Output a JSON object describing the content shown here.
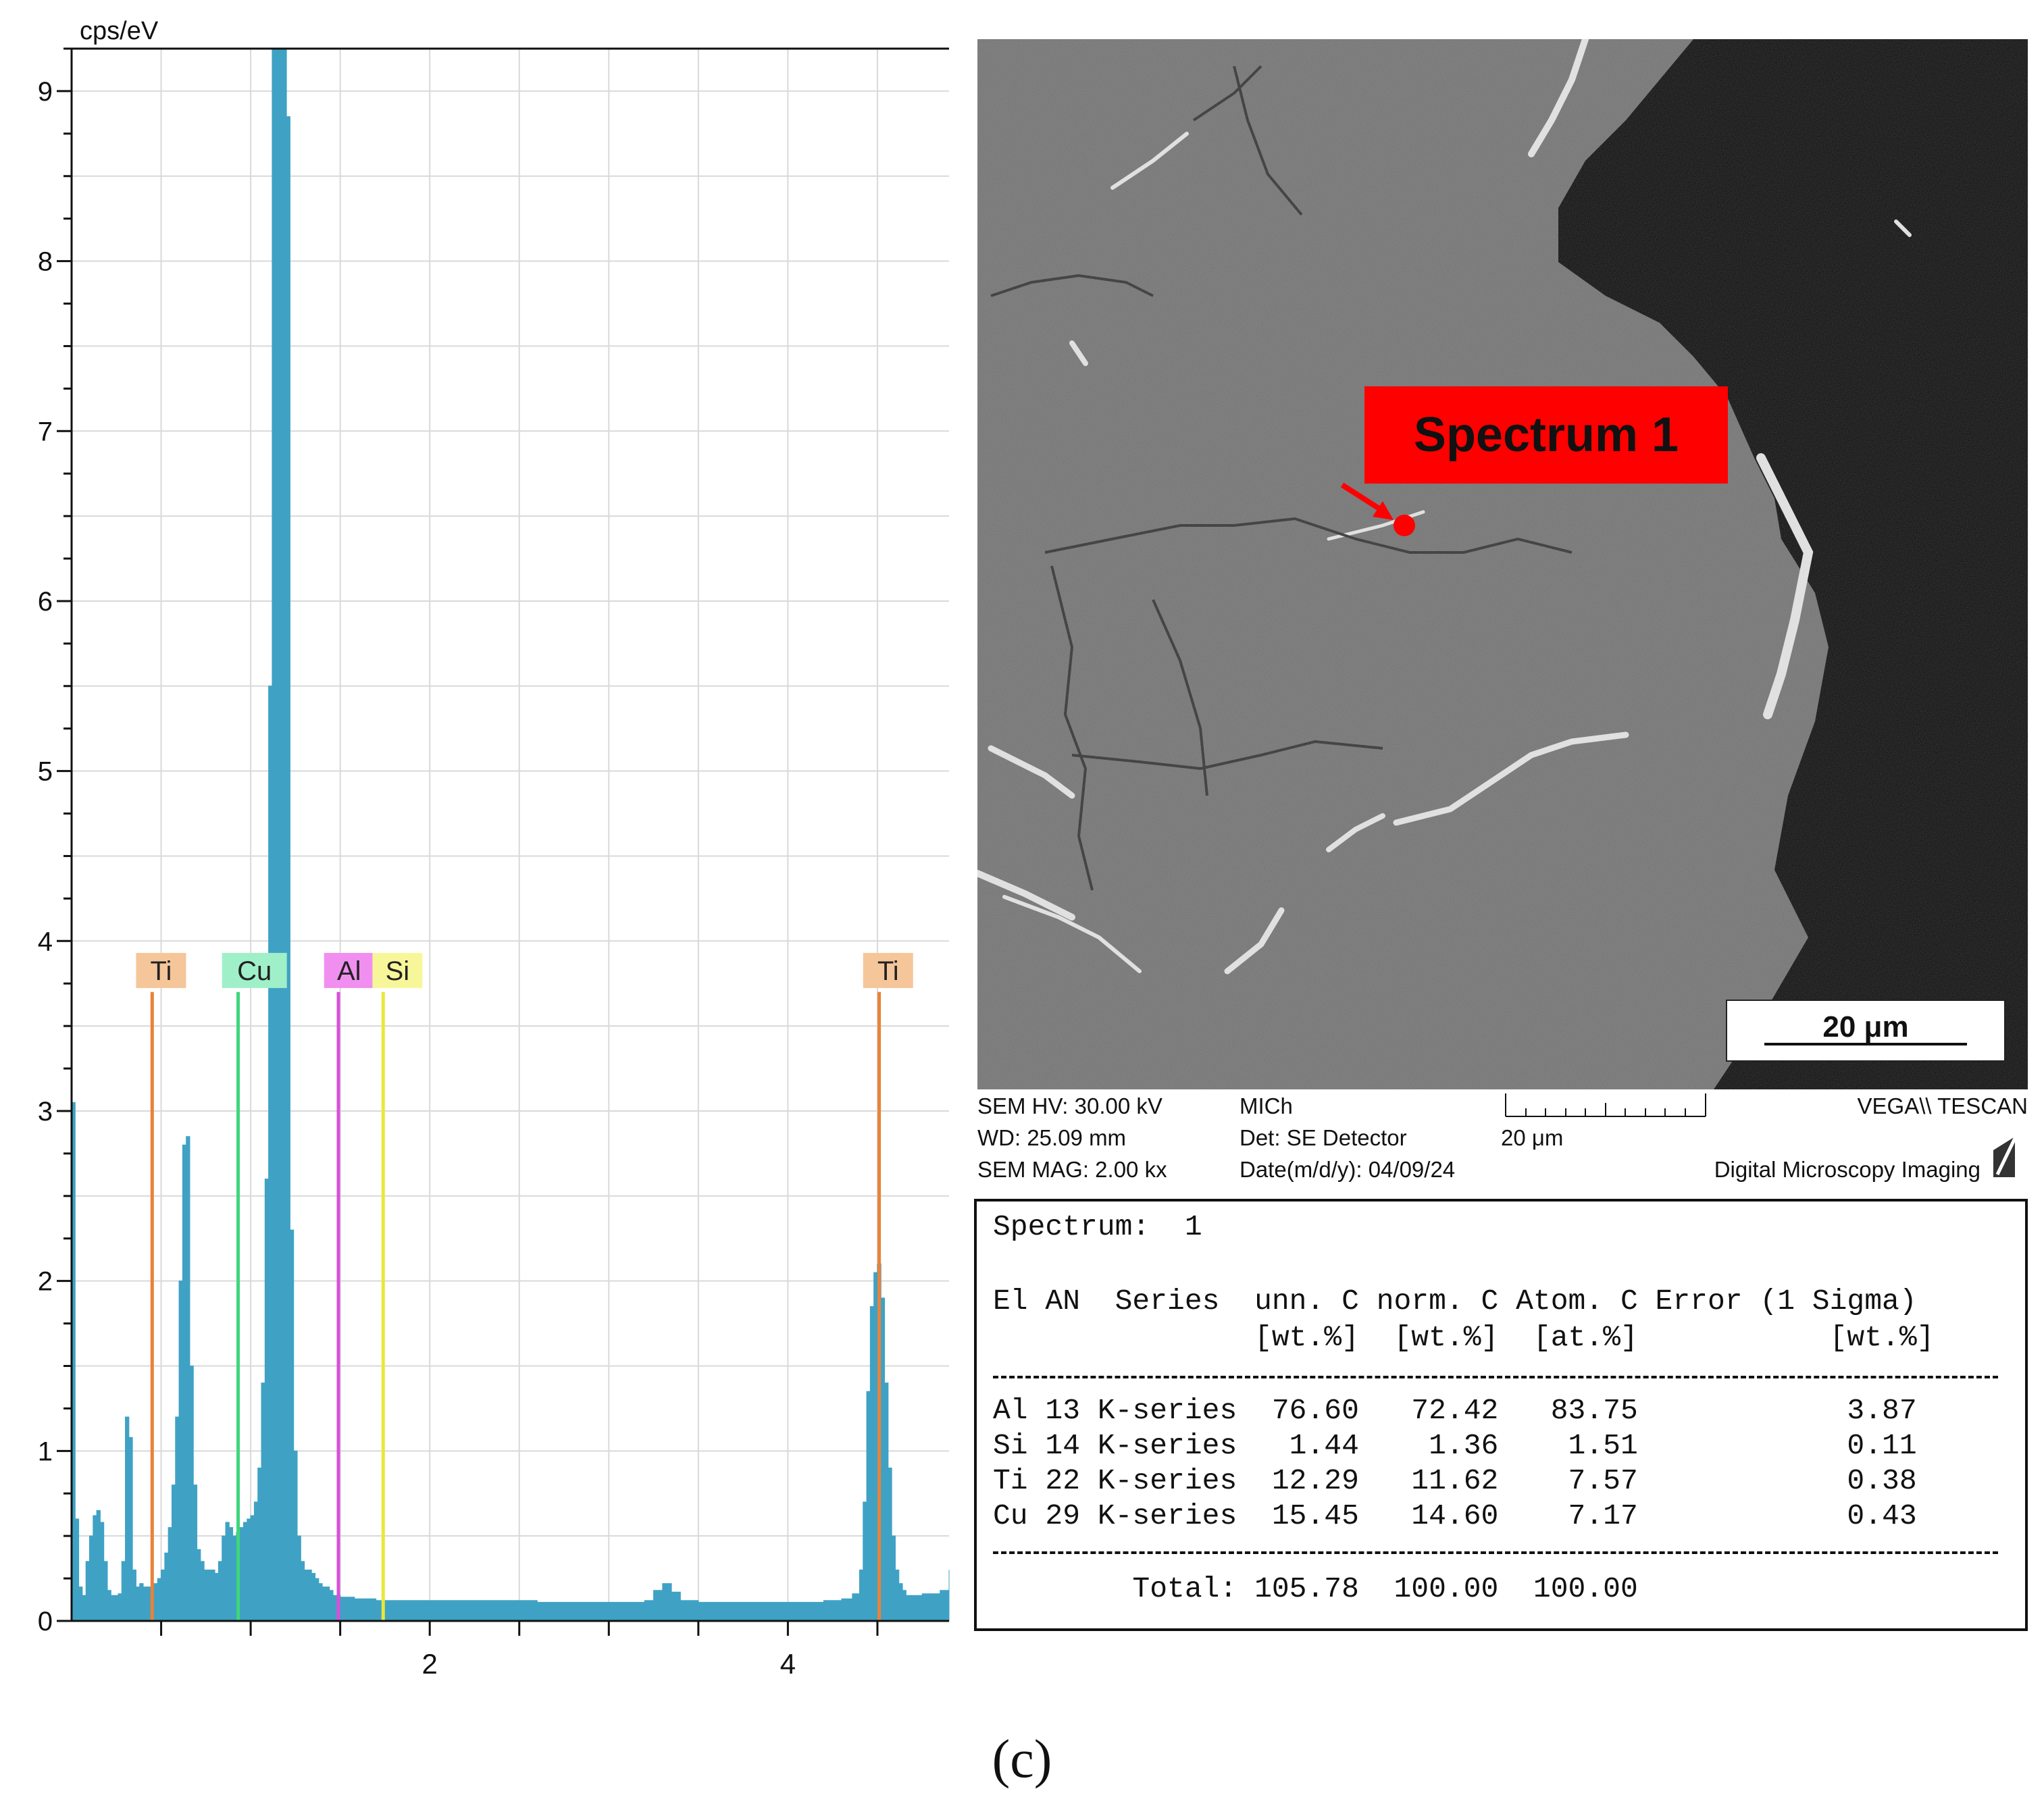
{
  "chart_data": {
    "type": "bar",
    "title": "",
    "xlabel": "",
    "ylabel": "cps/eV",
    "xlim": [
      0.0,
      4.9
    ],
    "ylim": [
      0,
      9.25
    ],
    "xticks": [
      2,
      4
    ],
    "xtick_labels": [
      "2",
      "4"
    ],
    "yticks": [
      0,
      1,
      2,
      3,
      4,
      5,
      6,
      7,
      8,
      9
    ],
    "ytick_labels": [
      "0",
      "1",
      "2",
      "3",
      "4",
      "5",
      "6",
      "7",
      "8",
      "9"
    ],
    "grid": true,
    "spectrum_color": "#3fa2c4",
    "spectrum": {
      "x": [
        0.0,
        0.02,
        0.04,
        0.06,
        0.08,
        0.1,
        0.12,
        0.14,
        0.16,
        0.18,
        0.2,
        0.22,
        0.24,
        0.26,
        0.28,
        0.3,
        0.32,
        0.34,
        0.36,
        0.38,
        0.4,
        0.42,
        0.44,
        0.46,
        0.48,
        0.5,
        0.52,
        0.54,
        0.56,
        0.58,
        0.6,
        0.62,
        0.64,
        0.66,
        0.68,
        0.7,
        0.72,
        0.74,
        0.76,
        0.78,
        0.8,
        0.82,
        0.84,
        0.86,
        0.88,
        0.9,
        0.92,
        0.94,
        0.96,
        0.98,
        1.0,
        1.02,
        1.04,
        1.06,
        1.08,
        1.1,
        1.12,
        1.14,
        1.16,
        1.18,
        1.2,
        1.22,
        1.24,
        1.26,
        1.28,
        1.3,
        1.32,
        1.34,
        1.36,
        1.38,
        1.4,
        1.42,
        1.44,
        1.46,
        1.48,
        1.5,
        1.52,
        1.54,
        1.56,
        1.58,
        1.6,
        1.62,
        1.64,
        1.66,
        1.68,
        1.7,
        1.72,
        1.74,
        1.76,
        1.78,
        1.8,
        1.85,
        1.9,
        2.0,
        2.2,
        2.4,
        2.6,
        2.8,
        3.0,
        3.1,
        3.2,
        3.25,
        3.3,
        3.35,
        3.4,
        3.5,
        3.7,
        3.9,
        4.0,
        4.1,
        4.2,
        4.3,
        4.36,
        4.4,
        4.42,
        4.44,
        4.46,
        4.48,
        4.5,
        4.52,
        4.54,
        4.56,
        4.58,
        4.6,
        4.62,
        4.64,
        4.66,
        4.7,
        4.75,
        4.8,
        4.85,
        4.9
      ],
      "y": [
        3.05,
        0.6,
        0.2,
        0.15,
        0.35,
        0.5,
        0.62,
        0.65,
        0.58,
        0.35,
        0.18,
        0.15,
        0.15,
        0.16,
        0.35,
        1.2,
        1.08,
        0.3,
        0.2,
        0.22,
        0.2,
        0.2,
        0.2,
        0.22,
        0.25,
        0.3,
        0.4,
        0.55,
        0.8,
        1.2,
        2.0,
        2.8,
        2.85,
        1.5,
        0.8,
        0.42,
        0.35,
        0.3,
        0.3,
        0.3,
        0.28,
        0.35,
        0.5,
        0.58,
        0.55,
        0.5,
        0.52,
        0.55,
        0.58,
        0.6,
        0.62,
        0.7,
        0.9,
        1.4,
        2.6,
        5.5,
        9.25,
        9.25,
        9.25,
        9.25,
        8.85,
        2.3,
        1.0,
        0.5,
        0.35,
        0.3,
        0.3,
        0.28,
        0.25,
        0.22,
        0.2,
        0.2,
        0.18,
        0.15,
        0.15,
        0.14,
        0.14,
        0.14,
        0.14,
        0.13,
        0.13,
        0.13,
        0.13,
        0.13,
        0.13,
        0.12,
        0.12,
        0.12,
        0.12,
        0.12,
        0.12,
        0.12,
        0.12,
        0.12,
        0.12,
        0.12,
        0.11,
        0.11,
        0.11,
        0.11,
        0.12,
        0.18,
        0.22,
        0.17,
        0.12,
        0.11,
        0.11,
        0.11,
        0.11,
        0.11,
        0.12,
        0.13,
        0.16,
        0.3,
        0.7,
        1.35,
        1.85,
        2.05,
        2.1,
        1.9,
        1.4,
        0.9,
        0.5,
        0.3,
        0.22,
        0.18,
        0.15,
        0.15,
        0.16,
        0.16,
        0.18,
        0.3
      ]
    },
    "element_lines": [
      {
        "label": "Ti",
        "energy": 0.45,
        "color": "#e8823a",
        "tag_color": "#f5c69a",
        "tag_x": 0.36
      },
      {
        "label": "Cu",
        "energy": 0.93,
        "color": "#3fd67a",
        "tag_color": "#9ff0c8",
        "tag_x": 0.84
      },
      {
        "label": "Al",
        "energy": 1.49,
        "color": "#d94fd9",
        "tag_color": "#f08ff0",
        "tag_x": 1.41
      },
      {
        "label": "Si",
        "energy": 1.74,
        "color": "#e8e83a",
        "tag_color": "#f7f79a",
        "tag_x": 1.68
      },
      {
        "label": "Ti",
        "energy": 4.51,
        "color": "#e8823a",
        "tag_color": "#f5c69a",
        "tag_x": 4.42
      }
    ]
  },
  "sem": {
    "spectrum_label": "Spectrum 1",
    "scale_bar": "20 μm",
    "marker_color": "#ff0000",
    "info": {
      "hv": "SEM HV: 30.00 kV",
      "wd": "WD: 25.09 mm",
      "mag": "SEM MAG: 2.00 kx",
      "user": "MICh",
      "det": "Det: SE Detector",
      "date": "Date(m/d/y): 04/09/24",
      "scale": "20 μm",
      "brand": "VEGA\\\\ TESCAN",
      "brand_sub": "Digital Microscopy Imaging"
    }
  },
  "results": {
    "spectrum_line": "Spectrum:  1",
    "header1": "El AN  Series  unn. C norm. C Atom. C Error (1 Sigma)",
    "header2": "               [wt.%]  [wt.%]  [at.%]           [wt.%]",
    "rows": [
      "Al 13 K-series  76.60   72.42   83.75            3.87",
      "Si 14 K-series   1.44    1.36    1.51            0.11",
      "Ti 22 K-series  12.29   11.62    7.57            0.38",
      "Cu 29 K-series  15.45   14.60    7.17            0.43"
    ],
    "total": "        Total: 105.78  100.00  100.00"
  },
  "panel_label": "(c)"
}
